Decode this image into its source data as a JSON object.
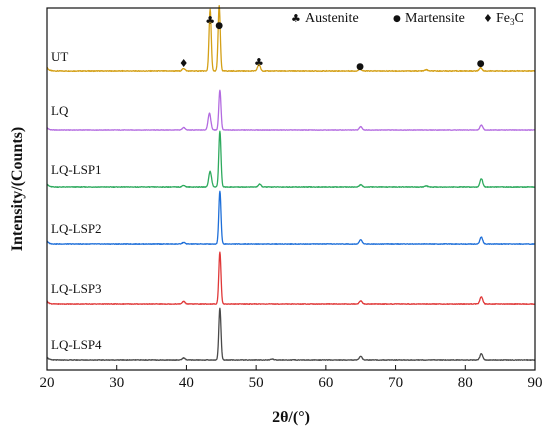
{
  "chart_data": {
    "type": "line",
    "title": "",
    "xlabel": "2θ/(°)",
    "ylabel": "Intensity/(Counts)",
    "xlim": [
      20,
      90
    ],
    "x_ticks": [
      20,
      30,
      40,
      50,
      60,
      70,
      80,
      90
    ],
    "y_ticks_visible": false,
    "grid": false,
    "legend": [
      {
        "symbol": "club",
        "glyph": "♣",
        "label": "Austenite"
      },
      {
        "symbol": "dot",
        "glyph": "●",
        "label": "Martensite"
      },
      {
        "symbol": "diamond",
        "glyph": "♦",
        "label": "Fe",
        "label_sub": "3",
        "label_suffix": "C"
      }
    ],
    "series": [
      {
        "name": "UT",
        "color": "#D4A017",
        "peaks": [
          {
            "x": 39.6,
            "h": 0.04
          },
          {
            "x": 43.4,
            "h": 0.95
          },
          {
            "x": 44.7,
            "h": 1.0
          },
          {
            "x": 50.4,
            "h": 0.1
          },
          {
            "x": 64.9,
            "h": 0.03
          },
          {
            "x": 74.4,
            "h": 0.02
          },
          {
            "x": 82.2,
            "h": 0.05
          }
        ]
      },
      {
        "name": "LQ",
        "color": "#B36BE0",
        "peaks": [
          {
            "x": 39.6,
            "h": 0.06
          },
          {
            "x": 43.3,
            "h": 0.4
          },
          {
            "x": 44.8,
            "h": 0.95
          },
          {
            "x": 65.0,
            "h": 0.08
          },
          {
            "x": 82.3,
            "h": 0.12
          }
        ]
      },
      {
        "name": "LQ-LSP1",
        "color": "#2EAA5E",
        "peaks": [
          {
            "x": 39.6,
            "h": 0.03
          },
          {
            "x": 43.4,
            "h": 0.28
          },
          {
            "x": 44.8,
            "h": 1.0
          },
          {
            "x": 50.5,
            "h": 0.05
          },
          {
            "x": 65.0,
            "h": 0.04
          },
          {
            "x": 74.4,
            "h": 0.02
          },
          {
            "x": 82.3,
            "h": 0.15
          }
        ]
      },
      {
        "name": "LQ-LSP2",
        "color": "#1E6FD9",
        "peaks": [
          {
            "x": 39.6,
            "h": 0.03
          },
          {
            "x": 44.8,
            "h": 1.0
          },
          {
            "x": 65.0,
            "h": 0.08
          },
          {
            "x": 82.3,
            "h": 0.13
          }
        ]
      },
      {
        "name": "LQ-LSP3",
        "color": "#E03838",
        "peaks": [
          {
            "x": 39.6,
            "h": 0.05
          },
          {
            "x": 44.8,
            "h": 1.0
          },
          {
            "x": 65.0,
            "h": 0.06
          },
          {
            "x": 82.3,
            "h": 0.14
          }
        ]
      },
      {
        "name": "LQ-LSP4",
        "color": "#4A4A4A",
        "peaks": [
          {
            "x": 39.6,
            "h": 0.04
          },
          {
            "x": 44.8,
            "h": 1.0
          },
          {
            "x": 52.3,
            "h": 0.02
          },
          {
            "x": 65.0,
            "h": 0.07
          },
          {
            "x": 82.3,
            "h": 0.12
          }
        ]
      }
    ],
    "annotations": [
      {
        "symbol": "club",
        "glyph": "♣",
        "x": 43.4,
        "series": "UT"
      },
      {
        "symbol": "dot",
        "glyph": "●",
        "x": 44.7,
        "series": "UT"
      },
      {
        "symbol": "diamond",
        "glyph": "♦",
        "x": 39.6,
        "series": "UT"
      },
      {
        "symbol": "club",
        "glyph": "♣",
        "x": 50.4,
        "series": "UT"
      },
      {
        "symbol": "dot",
        "glyph": "●",
        "x": 64.9,
        "series": "UT"
      },
      {
        "symbol": "dot",
        "glyph": "●",
        "x": 82.2,
        "series": "UT"
      }
    ]
  }
}
